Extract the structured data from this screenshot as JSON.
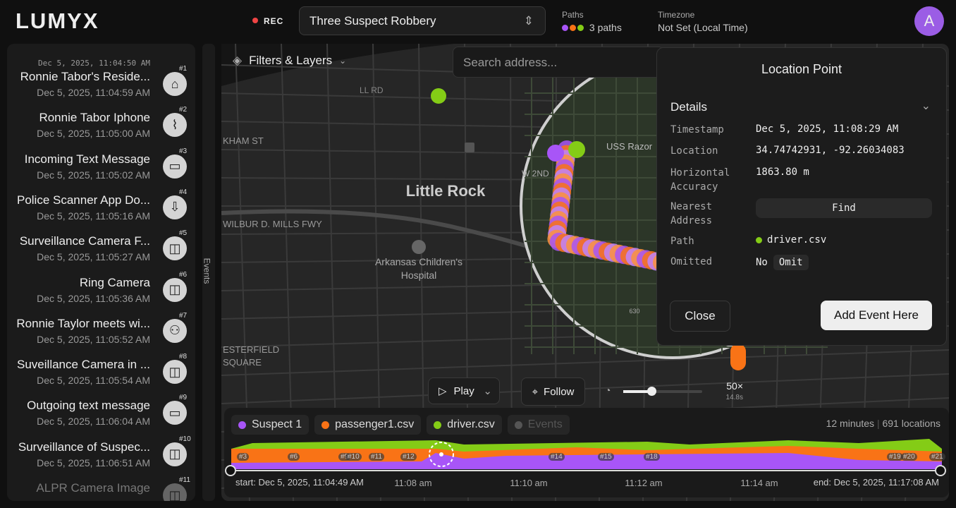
{
  "header": {
    "logo": "LUMYX",
    "rec": "REC",
    "case": "Three Suspect Robbery",
    "paths_label": "Paths",
    "paths_value": "3 paths",
    "timezone_label": "Timezone",
    "timezone_value": "Not Set (Local Time)",
    "avatar": "A"
  },
  "events": {
    "top_time": "Dec 5, 2025, 11:04:50 AM",
    "tab": "Events",
    "items": [
      {
        "title": "Ronnie Tabor's Reside...",
        "time": "Dec 5, 2025, 11:04:59 AM",
        "badge": "#1"
      },
      {
        "title": "Ronnie Tabor Iphone",
        "time": "Dec 5, 2025, 11:05:00 AM",
        "badge": "#2"
      },
      {
        "title": "Incoming Text Message",
        "time": "Dec 5, 2025, 11:05:02 AM",
        "badge": "#3"
      },
      {
        "title": "Police Scanner App Do...",
        "time": "Dec 5, 2025, 11:05:16 AM",
        "badge": "#4"
      },
      {
        "title": "Surveillance Camera F...",
        "time": "Dec 5, 2025, 11:05:27 AM",
        "badge": "#5"
      },
      {
        "title": "Ring Camera",
        "time": "Dec 5, 2025, 11:05:36 AM",
        "badge": "#6"
      },
      {
        "title": "Ronnie Taylor meets wi...",
        "time": "Dec 5, 2025, 11:05:52 AM",
        "badge": "#7"
      },
      {
        "title": "Suveillance Camera in ...",
        "time": "Dec 5, 2025, 11:05:54 AM",
        "badge": "#8"
      },
      {
        "title": "Outgoing text message",
        "time": "Dec 5, 2025, 11:06:04 AM",
        "badge": "#9"
      },
      {
        "title": "Surveillance of Suspec...",
        "time": "Dec 5, 2025, 11:06:51 AM",
        "badge": "#10"
      },
      {
        "title": "ALPR Camera Image",
        "badge": "#11"
      }
    ]
  },
  "map": {
    "filters": "Filters & Layers",
    "search": "Search address...",
    "labels": [
      "Little Rock",
      "Arkansas Children's Hospital",
      "KHAM ST",
      "WILBUR D. MILLS FWY",
      "ESTERFIELD SQUARE",
      "USS Razor",
      "W 2ND",
      "LL RD",
      "630"
    ]
  },
  "panel": {
    "title": "Location Point",
    "section": "Details",
    "timestamp_label": "Timestamp",
    "timestamp": "Dec 5, 2025, 11:08:29 AM",
    "location_label": "Location",
    "location": "34.74742931, -92.26034083",
    "accuracy_label": "Horizontal Accuracy",
    "accuracy": "1863.80 m",
    "address_label": "Nearest Address",
    "find": "Find",
    "path_label": "Path",
    "path": "driver.csv",
    "omitted_label": "Omitted",
    "omitted": "No",
    "omit": "Omit",
    "close": "Close",
    "add_event": "Add Event Here"
  },
  "playback": {
    "play": "Play",
    "follow": "Follow",
    "speed": "50×",
    "duration": "14.8s"
  },
  "timeline": {
    "legend": [
      {
        "name": "Suspect 1",
        "color": "#a855f7"
      },
      {
        "name": "passenger1.csv",
        "color": "#f97316"
      },
      {
        "name": "driver.csv",
        "color": "#84cc16"
      },
      {
        "name": "Events",
        "color": "#555"
      }
    ],
    "span": "12 minutes",
    "locations": "691 locations",
    "start": "start: Dec 5, 2025, 11:04:49 AM",
    "end": "end: Dec 5, 2025, 11:17:08 AM",
    "ticks": [
      "11:08 am",
      "11:10 am",
      "11:12 am",
      "11:14 am"
    ],
    "markers": [
      "#3",
      "#6",
      "#9",
      "#10",
      "#11",
      "#12",
      "#14",
      "#15",
      "#18",
      "#19",
      "#20",
      "#21"
    ]
  }
}
